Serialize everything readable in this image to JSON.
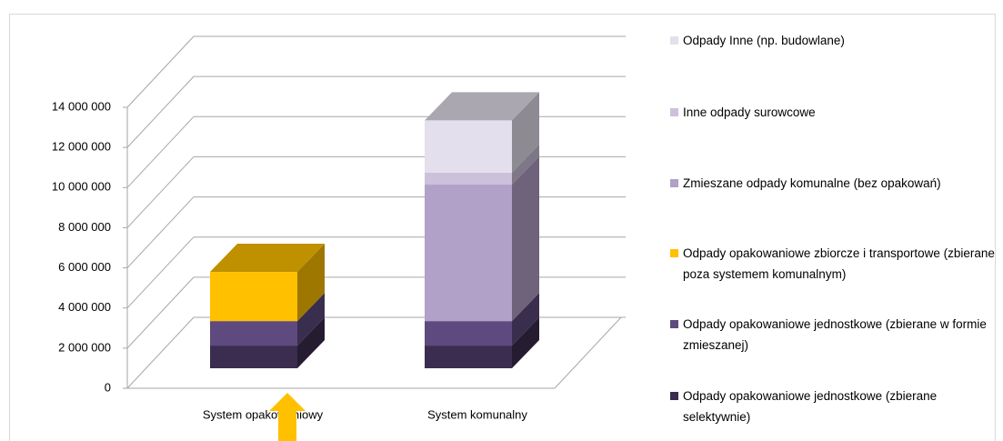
{
  "chart_data": {
    "type": "bar3d_stacked",
    "categories": [
      "System opakowaniowy",
      "System komunalny"
    ],
    "series": [
      {
        "name": "Odpady opakowaniowe jednostkowe (zbierane selektywnie)",
        "color": "#3b2d4f",
        "values": [
          1130000,
          1130000
        ]
      },
      {
        "name": "Odpady opakowaniowe jednostkowe (zbierane w formie zmieszanej)",
        "color": "#5e4a7e",
        "values": [
          1220000,
          1220000
        ]
      },
      {
        "name": "Odpady opakowaniowe zbiorcze i transportowe (zbierane poza systemem komunalnym)",
        "color": "#ffc000",
        "values": [
          2450000,
          0
        ]
      },
      {
        "name": "Zmieszane odpady komunalne (bez opakowań)",
        "color": "#b1a0c7",
        "values": [
          0,
          6800000
        ]
      },
      {
        "name": "Inne odpady surowcowe",
        "color": "#ccc0da",
        "values": [
          0,
          600000
        ]
      },
      {
        "name": "Odpady Inne (np. budowlane)",
        "color": "#e4dfec",
        "values": [
          0,
          2600000
        ]
      }
    ],
    "ylim": [
      0,
      14000000
    ],
    "yticks": [
      0,
      {
        "value": 2000000,
        "label": "2 000 000"
      },
      {
        "value": 4000000,
        "label": "4 000 000"
      },
      {
        "value": 6000000,
        "label": "6 000 000"
      },
      {
        "value": 8000000,
        "label": "8 000 000"
      },
      {
        "value": 10000000,
        "label": "10 000 000"
      },
      {
        "value": 12000000,
        "label": "12 000 000"
      },
      {
        "value": 14000000,
        "label": "14 000 000"
      }
    ],
    "grid": true,
    "legend": "right"
  }
}
